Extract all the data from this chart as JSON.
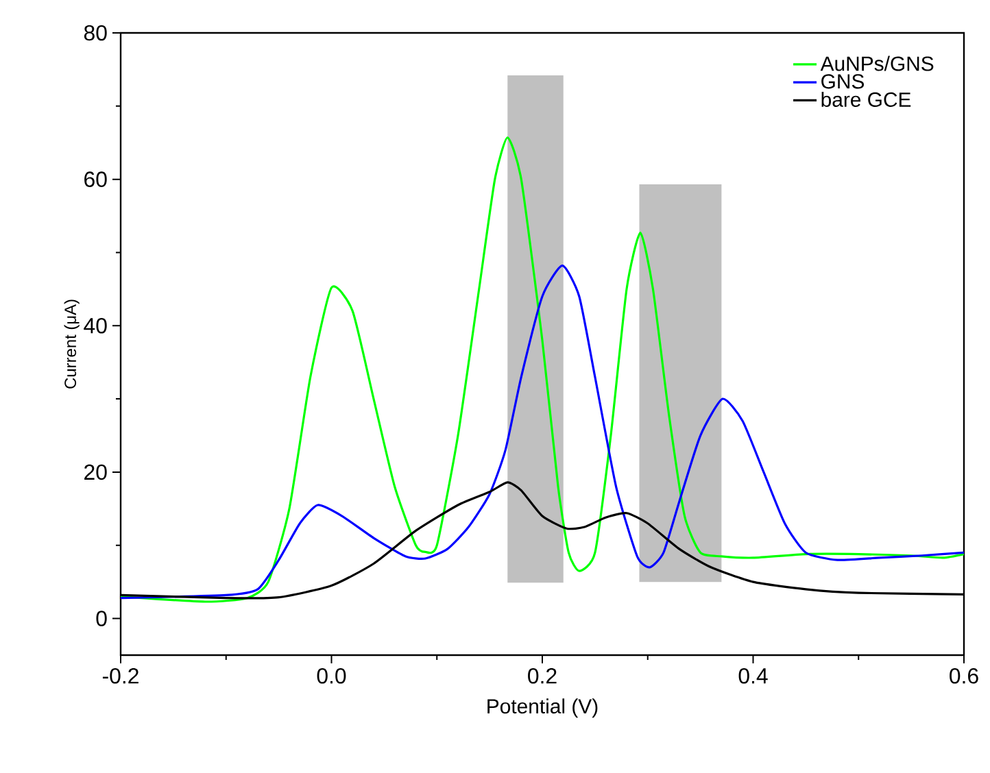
{
  "chart_data": {
    "type": "line",
    "xlabel": "Potential (V)",
    "ylabel": "Current (μA)",
    "xlim": [
      -0.2,
      0.6
    ],
    "ylim": [
      -5,
      80
    ],
    "xticks": [
      {
        "value": -0.2,
        "label": "-0.2"
      },
      {
        "value": 0,
        "label": "0.0"
      },
      {
        "value": 0.2,
        "label": "0.2"
      },
      {
        "value": 0.4,
        "label": "0.4"
      },
      {
        "value": 0.6,
        "label": "0.6"
      }
    ],
    "yticks": [
      0,
      20,
      40,
      60,
      80
    ],
    "grid": false,
    "legend": "top right",
    "marker": "none",
    "line_style": "solid",
    "series": [
      {
        "type": "bar",
        "color": "#c0c0c0",
        "x": [
          0.1935,
          0.331
        ],
        "base": [
          4.9,
          5.0
        ],
        "values": [
          69.3,
          54.3
        ]
      },
      {
        "name": "AuNPs/GNS",
        "color": "#00ff00",
        "x": [
          -0.2,
          -0.12,
          -0.08,
          -0.06,
          -0.04,
          -0.02,
          0.0,
          0.02,
          0.04,
          0.06,
          0.08,
          0.089,
          0.1,
          0.12,
          0.14,
          0.155,
          0.167,
          0.18,
          0.2,
          0.215,
          0.225,
          0.235,
          0.25,
          0.265,
          0.28,
          0.293,
          0.305,
          0.32,
          0.335,
          0.35,
          0.37,
          0.4,
          0.45,
          0.5,
          0.55,
          0.58,
          0.6
        ],
        "values": [
          3,
          2.3,
          2.8,
          5,
          15,
          33,
          45.2,
          42,
          30,
          18,
          10,
          9.1,
          10,
          25,
          45,
          60,
          65.7,
          60,
          38,
          18,
          9,
          6.5,
          9,
          25,
          45,
          52.7,
          45,
          28,
          14,
          9,
          8.5,
          8.3,
          8.8,
          8.8,
          8.6,
          8.3,
          8.8
        ]
      },
      {
        "name": "GNS",
        "color": "#0000ff",
        "x": [
          -0.2,
          -0.1,
          -0.07,
          -0.05,
          -0.03,
          -0.013,
          0.01,
          0.04,
          0.07,
          0.089,
          0.11,
          0.13,
          0.15,
          0.165,
          0.18,
          0.2,
          0.219,
          0.235,
          0.25,
          0.27,
          0.29,
          0.302,
          0.315,
          0.33,
          0.35,
          0.371,
          0.39,
          0.41,
          0.43,
          0.45,
          0.48,
          0.52,
          0.56,
          0.6
        ],
        "values": [
          2.8,
          3.2,
          4,
          8,
          13,
          15.5,
          14,
          11,
          8.5,
          8.2,
          9.5,
          12.5,
          17,
          23,
          33,
          44,
          48.2,
          44,
          33,
          18,
          8.5,
          7,
          9,
          16,
          25,
          30,
          27,
          20,
          13,
          9,
          8,
          8.3,
          8.6,
          9
        ]
      },
      {
        "name": "bare GCE",
        "color": "#000000",
        "x": [
          -0.2,
          -0.1,
          -0.05,
          0.0,
          0.04,
          0.08,
          0.12,
          0.15,
          0.167,
          0.18,
          0.2,
          0.223,
          0.24,
          0.26,
          0.28,
          0.3,
          0.33,
          0.36,
          0.4,
          0.45,
          0.5,
          0.6
        ],
        "values": [
          3.2,
          2.8,
          2.9,
          4.5,
          7.5,
          12,
          15.5,
          17.3,
          18.6,
          17.5,
          14,
          12.3,
          12.5,
          13.8,
          14.4,
          13,
          9.5,
          7,
          5,
          4,
          3.5,
          3.3
        ]
      }
    ]
  }
}
